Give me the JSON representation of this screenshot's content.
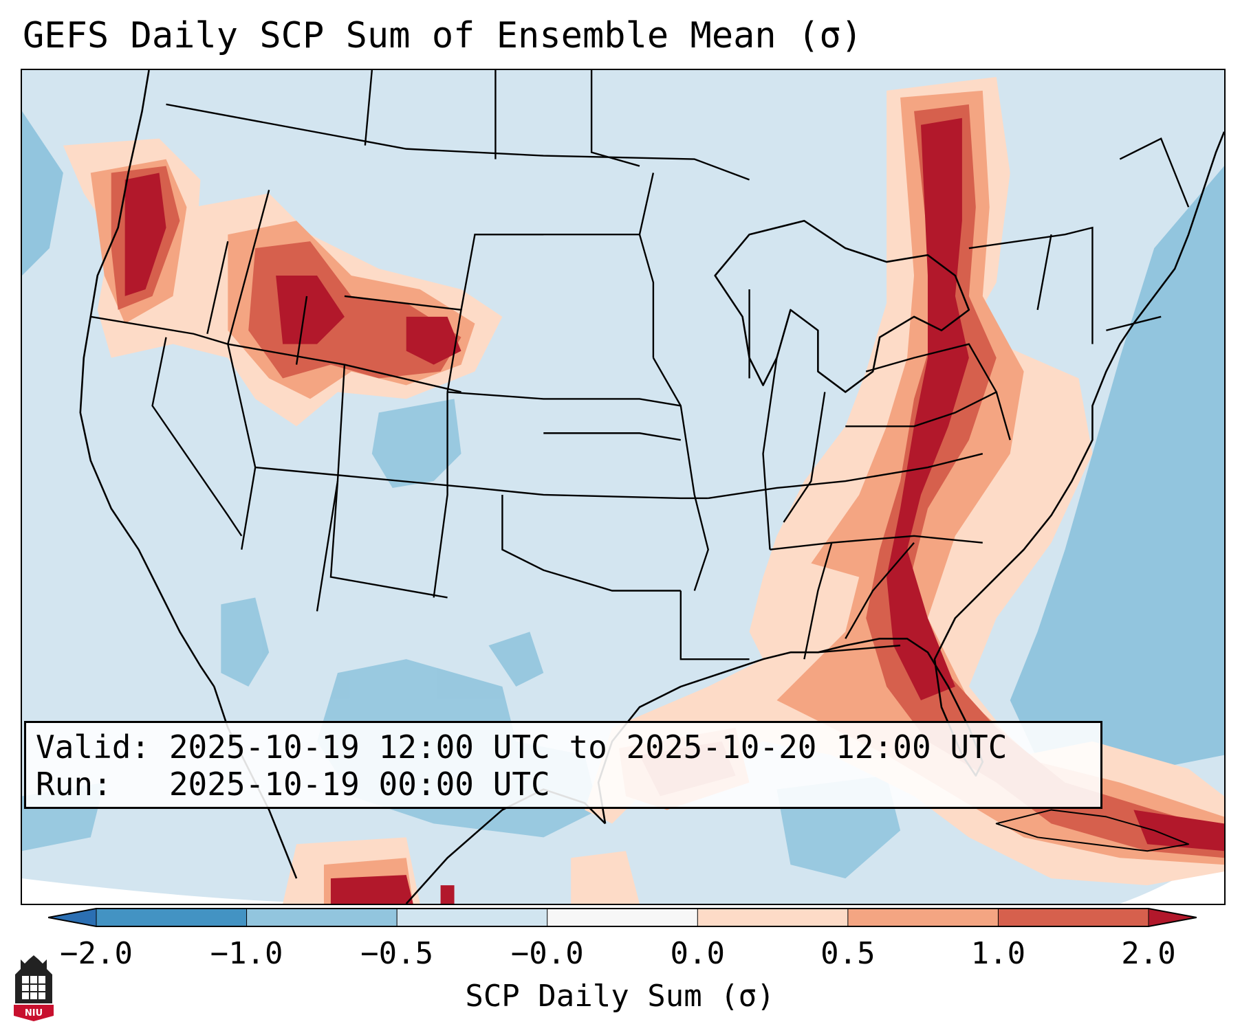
{
  "title": "GEFS Daily SCP Sum of Ensemble Mean (σ)",
  "map": {
    "region": "Continental United States",
    "basemap_color": "#d3e5f0",
    "line_color": "#000000"
  },
  "info": {
    "valid_line": "Valid: 2025-10-19 12:00 UTC to 2025-10-20 12:00 UTC",
    "run_line": "Run:   2025-10-19 00:00 UTC"
  },
  "colorbar": {
    "label": "SCP Daily Sum (σ)",
    "ticks": [
      "−2.0",
      "−1.0",
      "−0.5",
      "−0.0",
      "0.0",
      "0.5",
      "1.0",
      "2.0"
    ],
    "bins": [
      {
        "range": "<-2.0",
        "color": "#2b6fb3"
      },
      {
        "range": "-2.0 to -1.0",
        "color": "#4393c3"
      },
      {
        "range": "-1.0 to -0.5",
        "color": "#92c5de"
      },
      {
        "range": "-0.5 to -0.0",
        "color": "#d1e5f0"
      },
      {
        "range": "-0.0 to 0.0",
        "color": "#f7f7f7"
      },
      {
        "range": "0.0 to 0.5",
        "color": "#fddbc7"
      },
      {
        "range": "0.5 to 1.0",
        "color": "#f4a582"
      },
      {
        "range": "1.0 to 2.0",
        "color": "#d6604d"
      },
      {
        "range": ">2.0",
        "color": "#b2182b"
      }
    ]
  },
  "logo": {
    "name": "NIU",
    "text": "NIU",
    "color": "#c8102e"
  }
}
